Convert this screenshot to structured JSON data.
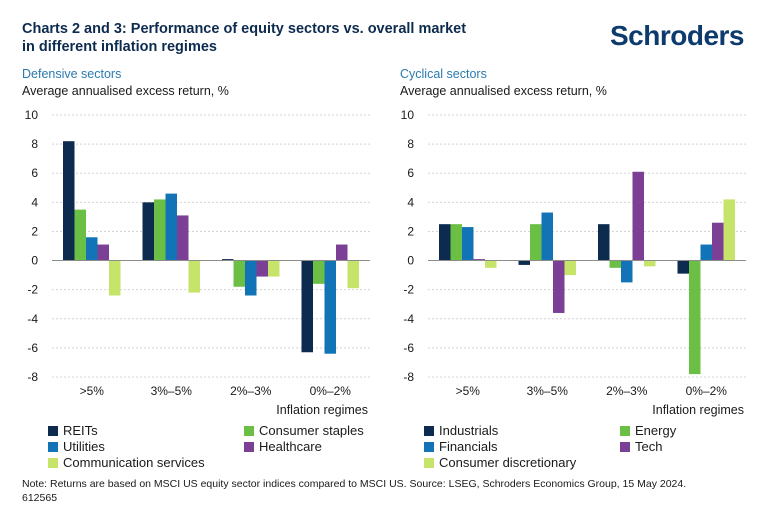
{
  "header": {
    "title_line1": "Charts 2 and 3: Performance of equity sectors vs. overall market",
    "title_line2": "in different inflation regimes",
    "logo_text": "Schroders"
  },
  "colors": {
    "navy": "#0d2b4f",
    "green": "#6cbf45",
    "blue": "#1274b7",
    "purple": "#7b3f96",
    "lime": "#c6e36a",
    "grid": "#d4d4d4"
  },
  "chart_data": [
    {
      "type": "bar",
      "panel_title": "Defensive sectors",
      "ylabel": "Average annualised excess return, %",
      "xlabel": "Inflation regimes",
      "ylim": [
        -8,
        10
      ],
      "yticks": [
        "10",
        "8",
        "6",
        "4",
        "2",
        "0",
        "-2",
        "-4",
        "-6",
        "-8"
      ],
      "grid": true,
      "legend_position": "bottom",
      "categories": [
        ">5%",
        "3%–5%",
        "2%–3%",
        "0%–2%"
      ],
      "series": [
        {
          "name": "REITs",
          "color": "#0d2b4f",
          "values": [
            8.2,
            4.0,
            0.1,
            -6.3
          ]
        },
        {
          "name": "Consumer staples",
          "color": "#6cbf45",
          "values": [
            3.5,
            4.2,
            -1.8,
            -1.6
          ]
        },
        {
          "name": "Utilities",
          "color": "#1274b7",
          "values": [
            1.6,
            4.6,
            -2.4,
            -6.4
          ]
        },
        {
          "name": "Healthcare",
          "color": "#7b3f96",
          "values": [
            1.1,
            3.1,
            -1.1,
            1.1
          ]
        },
        {
          "name": "Communication services",
          "color": "#c6e36a",
          "values": [
            -2.4,
            -2.2,
            -1.1,
            -1.9
          ]
        }
      ]
    },
    {
      "type": "bar",
      "panel_title": "Cyclical sectors",
      "ylabel": "Average annualised excess return, %",
      "xlabel": "Inflation regimes",
      "ylim": [
        -8,
        10
      ],
      "yticks": [
        "10",
        "8",
        "6",
        "4",
        "2",
        "0",
        "-2",
        "-4",
        "-6",
        "-8"
      ],
      "grid": true,
      "legend_position": "bottom",
      "categories": [
        ">5%",
        "3%–5%",
        "2%–3%",
        "0%–2%"
      ],
      "series": [
        {
          "name": "Industrials",
          "color": "#0d2b4f",
          "values": [
            2.5,
            -0.3,
            2.5,
            -0.9
          ]
        },
        {
          "name": "Energy",
          "color": "#6cbf45",
          "values": [
            2.5,
            2.5,
            -0.5,
            -7.8
          ]
        },
        {
          "name": "Financials",
          "color": "#1274b7",
          "values": [
            2.3,
            3.3,
            -1.5,
            1.1
          ]
        },
        {
          "name": "Tech",
          "color": "#7b3f96",
          "values": [
            0.1,
            -3.6,
            6.1,
            2.6
          ]
        },
        {
          "name": "Consumer discretionary",
          "color": "#c6e36a",
          "values": [
            -0.5,
            -1.0,
            -0.4,
            4.2
          ]
        }
      ]
    }
  ],
  "footer": {
    "note": "Note: Returns are based on MSCI US equity sector indices compared to MSCI US. Source: LSEG, Schroders Economics Group, 15 May 2024.",
    "code": "612565"
  }
}
